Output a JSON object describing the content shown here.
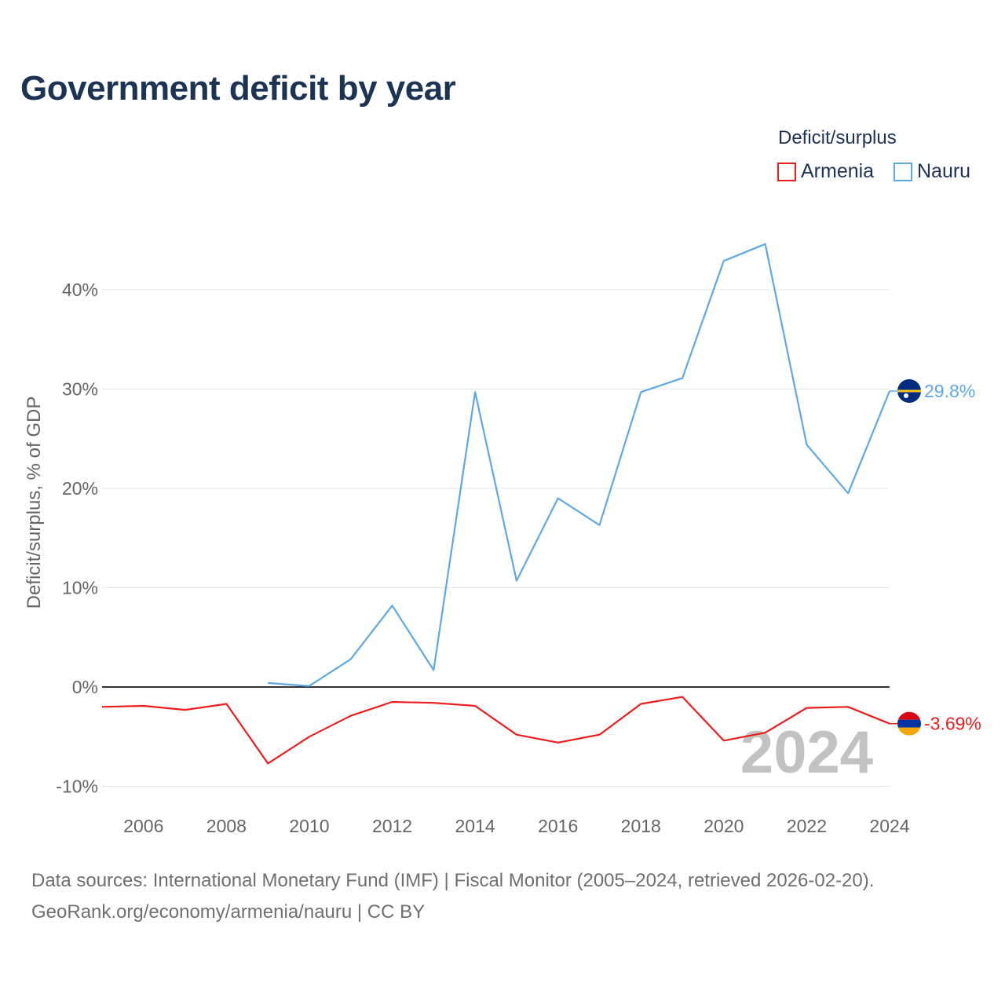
{
  "page": {
    "title": "Government deficit by year",
    "source_line1": "Data sources: International Monetary Fund (IMF) | Fiscal Monitor (2005–2024, retrieved 2026-02-20).",
    "source_line2": "GeoRank.org/economy/armenia/nauru | CC BY"
  },
  "legend": {
    "title": "Deficit/surplus",
    "items": [
      {
        "label": "Armenia",
        "color": "#ee1c1c"
      },
      {
        "label": "Nauru",
        "color": "#5fa8e6"
      }
    ]
  },
  "colors": {
    "zero_line": "#333333",
    "grid": "#e6e6e6",
    "armenia": "#ee1c1c",
    "nauru": "#5fa8e6"
  },
  "chart_data": {
    "type": "line",
    "title": "Government deficit by year",
    "xlabel": "",
    "ylabel": "Deficit/surplus, % of GDP",
    "xlim": [
      2005,
      2024
    ],
    "ylim": [
      -10,
      50
    ],
    "yticks": [
      -10,
      0,
      10,
      20,
      30,
      40
    ],
    "ytick_labels": [
      "-10%",
      "0%",
      "10%",
      "20%",
      "30%",
      "40%"
    ],
    "xticks": [
      2006,
      2008,
      2010,
      2012,
      2014,
      2016,
      2018,
      2020,
      2022,
      2024
    ],
    "xtick_labels": [
      "2006",
      "2008",
      "2010",
      "2012",
      "2014",
      "2016",
      "2018",
      "2020",
      "2022",
      "2024"
    ],
    "watermark": "2024",
    "series": [
      {
        "name": "Armenia",
        "color": "#ee1c1c",
        "end_label": "-3.69%",
        "flag": "armenia-flag-icon",
        "x": [
          2005,
          2006,
          2007,
          2008,
          2009,
          2010,
          2011,
          2012,
          2013,
          2014,
          2015,
          2016,
          2017,
          2018,
          2019,
          2020,
          2021,
          2022,
          2023,
          2024
        ],
        "values": [
          -2.0,
          -1.9,
          -2.3,
          -1.7,
          -7.7,
          -5.0,
          -2.9,
          -1.5,
          -1.6,
          -1.9,
          -4.8,
          -5.6,
          -4.8,
          -1.7,
          -1.0,
          -5.4,
          -4.6,
          -2.1,
          -2.0,
          -3.69
        ]
      },
      {
        "name": "Nauru",
        "color": "#5fa8e6",
        "end_label": "29.8%",
        "flag": "nauru-flag-icon",
        "x": [
          2009,
          2010,
          2011,
          2012,
          2013,
          2014,
          2015,
          2016,
          2017,
          2018,
          2019,
          2020,
          2021,
          2022,
          2023,
          2024
        ],
        "values": [
          0.4,
          0.1,
          2.8,
          8.2,
          1.7,
          29.7,
          10.7,
          19.0,
          16.3,
          29.7,
          31.1,
          42.9,
          44.6,
          24.4,
          19.5,
          29.8
        ]
      }
    ]
  }
}
